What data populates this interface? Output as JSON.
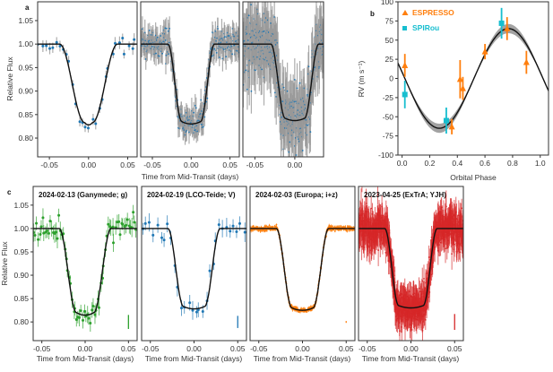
{
  "colors": {
    "blue": "#1f77b4",
    "orange": "#ff7f0e",
    "green": "#2ca02c",
    "red": "#d62728",
    "teal": "#17becf",
    "model": "#111111"
  },
  "chart_data": [
    {
      "panel": "a",
      "type": "scatter",
      "panel_label": "a",
      "ylabel": "Relative Flux",
      "xlabel": "Time from Mid-Transit (days)",
      "ylim": [
        0.76,
        1.09
      ],
      "yticks": [
        "1.05",
        "1.00",
        "0.95",
        "0.90",
        "0.85",
        "0.80"
      ],
      "subplots": [
        {
          "xlim": [
            -0.065,
            0.062
          ],
          "xticks": [
            "-0.05",
            "0.00",
            "0.05"
          ],
          "model": {
            "depth": 0.167,
            "t_total": 0.037,
            "t_flat": 0.005
          },
          "noise": 0.01,
          "n_points": 30,
          "color": "#1f77b4"
        },
        {
          "xlim": [
            -0.065,
            0.062
          ],
          "xticks": [
            "-0.05",
            "0.00",
            "0.05"
          ],
          "model": {
            "depth": 0.165,
            "t_total": 0.03,
            "t_flat": 0.012
          },
          "noise": 0.02,
          "n_points": 260,
          "color": "#1f77b4"
        },
        {
          "xlim": [
            -0.065,
            0.036
          ],
          "xticks": [
            "-0.05",
            "0.00"
          ],
          "model": {
            "depth": 0.158,
            "t_total": 0.03,
            "t_flat": 0.012
          },
          "noise": 0.045,
          "n_points": 320,
          "color": "#1f77b4"
        }
      ]
    },
    {
      "panel": "b",
      "type": "scatter",
      "panel_label": "b",
      "xlabel": "Orbital Phase",
      "ylabel": "RV (m s⁻¹)",
      "xlim": [
        -0.03,
        1.06
      ],
      "ylim": [
        -100,
        100
      ],
      "xticks": [
        "0.0",
        "0.2",
        "0.4",
        "0.6",
        "0.8",
        "1.0"
      ],
      "yticks": [
        "100",
        "75",
        "50",
        "25",
        "0",
        "-25",
        "-50",
        "-75",
        "-100"
      ],
      "model": {
        "amplitude": 65,
        "phase_offset": 0.02
      },
      "legend": {
        "position": "top-left"
      },
      "series": [
        {
          "name": "ESPRESSO",
          "marker": "triangle",
          "color": "#ff7f0e",
          "x": [
            0.02,
            0.36,
            0.42,
            0.44,
            0.6,
            0.76,
            0.9
          ],
          "y": [
            17,
            -63,
            -1,
            -13,
            35,
            65,
            21
          ],
          "err": [
            15,
            10,
            25,
            15,
            10,
            15,
            15
          ]
        },
        {
          "name": "SPIRou",
          "marker": "square",
          "color": "#17becf",
          "x": [
            0.02,
            0.32,
            0.72
          ],
          "y": [
            -21,
            -55,
            72
          ],
          "err": [
            18,
            17,
            20
          ]
        }
      ]
    },
    {
      "panel": "c",
      "type": "scatter",
      "panel_label": "c",
      "ylabel": "Relative Flux",
      "xlabel": "Time from Mid-Transit (days)",
      "ylim": [
        0.76,
        1.09
      ],
      "xlim": [
        -0.06,
        0.06
      ],
      "yticks": [
        "1.05",
        "1.00",
        "0.95",
        "0.90",
        "0.85",
        "0.80"
      ],
      "xticks": [
        "-0.05",
        "0.00",
        "0.05"
      ],
      "subplots": [
        {
          "title": "2024-02-13  (Ganymede; g)",
          "color": "#2ca02c",
          "model": {
            "depth": 0.18,
            "t_total": 0.03,
            "t_flat": 0.01
          },
          "noise": 0.015,
          "n_points": 70,
          "errbar": 0.015
        },
        {
          "title": "2024-02-19  (LCO-Teide; V)",
          "color": "#1f77b4",
          "model": {
            "depth": 0.167,
            "t_total": 0.03,
            "t_flat": 0.012
          },
          "noise": 0.015,
          "n_points": 30,
          "errbar": 0.013
        },
        {
          "title": "2024-02-03  (Europa; i+z)",
          "color": "#ff7f0e",
          "model": {
            "depth": 0.17,
            "t_total": 0.03,
            "t_flat": 0.012
          },
          "noise": 0.003,
          "n_points": 400,
          "errbar": 0.002
        },
        {
          "title": "2023-04-25  (ExTrA; YJH)",
          "color": "#d62728",
          "model": {
            "depth": 0.165,
            "t_total": 0.03,
            "t_flat": 0.014
          },
          "noise": 0.025,
          "n_points": 700,
          "errbar": 0.017
        }
      ]
    }
  ]
}
